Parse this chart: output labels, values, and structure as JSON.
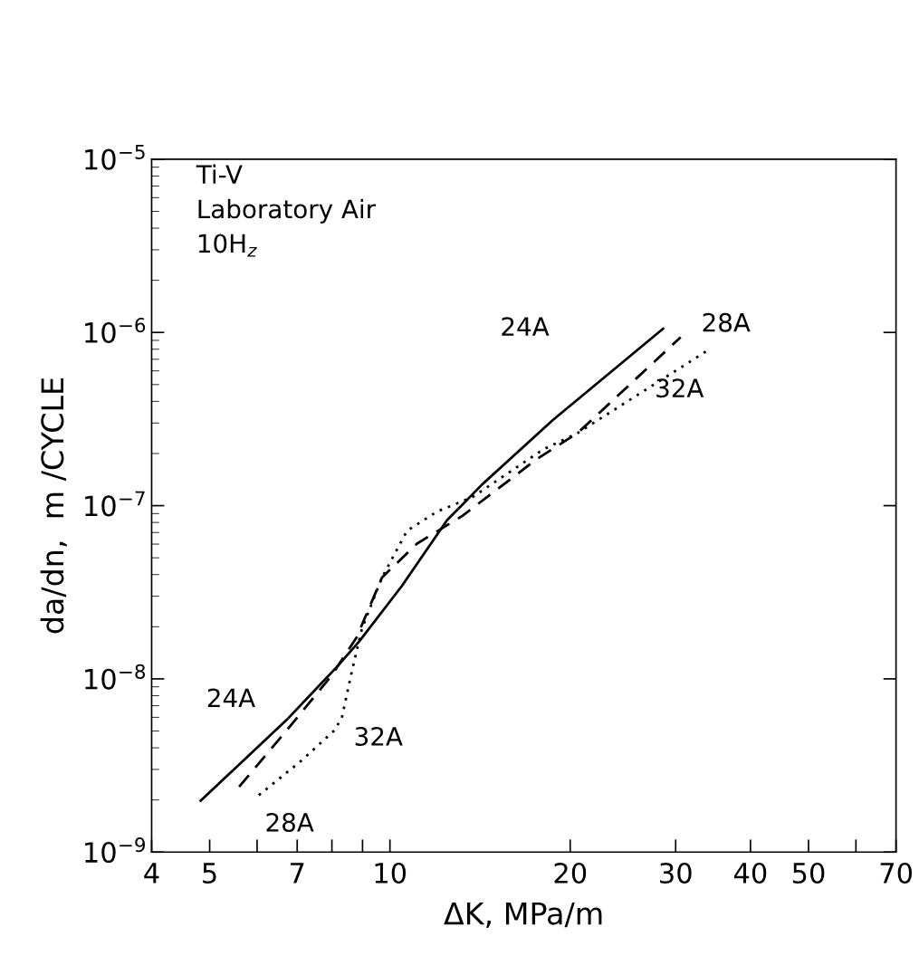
{
  "chart_data": {
    "type": "line",
    "xlabel": "ΔK, MPa/m",
    "ylabel": "da/dn,  m /CYCLE",
    "log": "xy",
    "grid": false,
    "legend": false,
    "xlim": [
      4,
      70
    ],
    "xticks": [
      4,
      5,
      {
        "value": 6,
        "label": null
      },
      7,
      {
        "value": 8,
        "label": null
      },
      {
        "value": 9,
        "label": null
      },
      10,
      20,
      30,
      40,
      50,
      {
        "value": 60,
        "label": null
      },
      70
    ],
    "ylim": [
      1e-09,
      1e-05
    ],
    "yticks": [
      {
        "value": 1e-09,
        "label": "10$^{−9}$"
      },
      {
        "value": 1e-08,
        "label": "10$^{−8}$"
      },
      {
        "value": 1e-07,
        "label": "10$^{−7}$"
      },
      {
        "value": 1e-06,
        "label": "10$^{−6}$"
      },
      {
        "value": 1e-05,
        "label": "10$^{−5}$"
      }
    ],
    "annotations": [
      "Ti-V",
      "Laboratory Air",
      "10H$_{z}$"
    ],
    "series": [
      {
        "name": "24A",
        "color": "#000000",
        "line_style": "solid",
        "x": [
          4.83,
          6.72,
          8.15,
          8.89,
          10.47,
          12.46,
          14.27,
          18.69,
          28.58
        ],
        "values": [
          1.98e-09,
          5.79e-09,
          1.17e-08,
          1.65e-08,
          3.44e-08,
          8.25e-08,
          1.33e-07,
          3.11e-07,
          1.05e-06
        ]
      },
      {
        "name": "28A",
        "color": "#000000",
        "line_style": "dashed",
        "x": [
          5.6,
          6.72,
          8.0,
          8.8,
          9.7,
          11.1,
          13.21,
          17.64,
          20.59,
          30.58
        ],
        "values": [
          2.38e-09,
          5.03e-09,
          1.05e-08,
          1.74e-08,
          3.85e-08,
          6.04e-08,
          8.73e-08,
          1.87e-07,
          2.63e-07,
          9.38e-07
        ]
      },
      {
        "name": "32A",
        "color": "#000000",
        "line_style": "dotted",
        "x": [
          6.04,
          7.12,
          8.07,
          8.31,
          8.64,
          8.98,
          9.7,
          10.68,
          11.99,
          13.73,
          17.98,
          20.59,
          34.0
        ],
        "values": [
          2.13e-09,
          3.38e-09,
          5.03e-09,
          5.95e-09,
          1.11e-08,
          1.95e-08,
          3.85e-08,
          7.16e-08,
          9.25e-08,
          1.12e-07,
          2.1e-07,
          2.63e-07,
          7.91e-07
        ]
      }
    ]
  }
}
